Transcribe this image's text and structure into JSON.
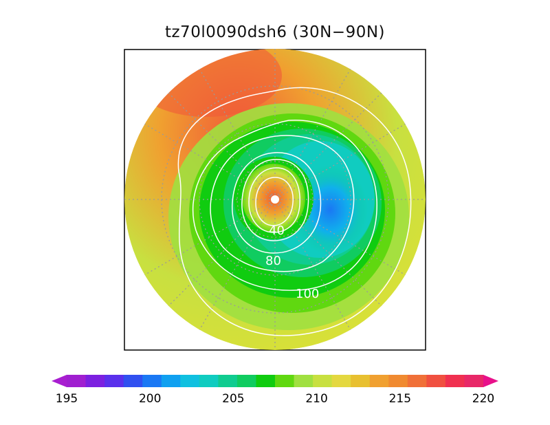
{
  "title": "tz70l0090dsh6 (30N−90N)",
  "map": {
    "projection": "north-polar-stereographic",
    "extent": "30N–90N",
    "contour_color": "#ffffff",
    "graticule_style": "dotted-gray",
    "contours": [
      {
        "label": "40"
      },
      {
        "label": "80"
      },
      {
        "label": "100"
      }
    ]
  },
  "colorbar": {
    "ticks": [
      "195",
      "200",
      "205",
      "210",
      "215",
      "220"
    ],
    "colors": [
      "#a01fd0",
      "#7c20e0",
      "#5a30ec",
      "#3050f0",
      "#1a78f4",
      "#10a0f0",
      "#10c0e0",
      "#10ccc0",
      "#10cc90",
      "#10cc60",
      "#10cc10",
      "#60d810",
      "#a0e040",
      "#c8e040",
      "#e4d840",
      "#e8c030",
      "#f0a030",
      "#f08a30",
      "#f07038",
      "#f05040",
      "#f03050",
      "#e82868"
    ],
    "min_arrow_color": "#a81ed0",
    "max_arrow_color": "#e8108a"
  }
}
